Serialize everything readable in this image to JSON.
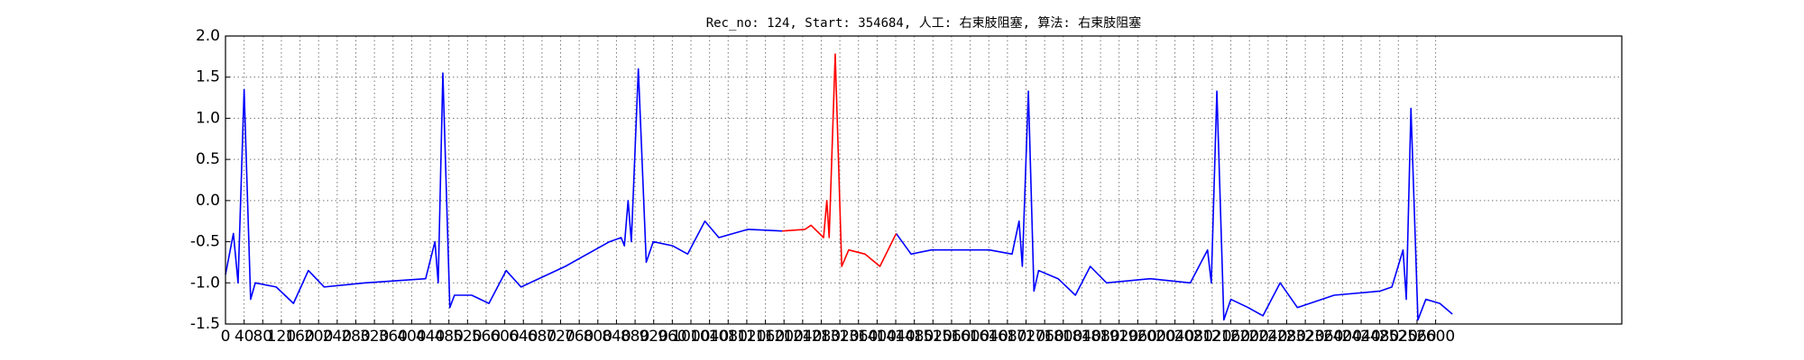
{
  "chart_data": {
    "type": "line",
    "title": "Rec_no: 124, Start: 354684, 人工: 右束肢阻塞, 算法: 右束肢阻塞",
    "x": [
      0,
      17,
      27,
      40,
      54,
      64,
      109,
      146,
      178,
      212,
      300,
      430,
      450,
      457,
      467,
      482,
      492,
      529,
      566,
      603,
      635,
      730,
      825,
      850,
      857,
      865,
      872,
      887,
      904,
      919,
      961,
      993,
      1030,
      1060,
      1122,
      1196,
      1245,
      1258,
      1285,
      1292,
      1297,
      1310,
      1324,
      1339,
      1374,
      1406,
      1441,
      1473,
      1517,
      1641,
      1690,
      1705,
      1712,
      1725,
      1737,
      1747,
      1789,
      1826,
      1858,
      1893,
      1987,
      2073,
      2110,
      2118,
      2130,
      2145,
      2160,
      2197,
      2229,
      2266,
      2303,
      2382,
      2481,
      2506,
      2530,
      2537,
      2547,
      2562,
      2579,
      2609,
      2636
    ],
    "series": [
      {
        "color": "#0000ff",
        "values": [
          -0.9,
          -0.4,
          -1.0,
          1.35,
          -1.2,
          -1.0,
          -1.05,
          -1.25,
          -0.85,
          -1.05,
          -1.0,
          -0.95,
          -0.5,
          -1.0,
          1.55,
          -1.3,
          -1.15,
          -1.15,
          -1.25,
          -0.85,
          -1.05,
          -0.8,
          -0.5,
          -0.45,
          -0.55,
          0.0,
          -0.5,
          1.6,
          -0.75,
          -0.5,
          -0.55,
          -0.65,
          -0.25,
          -0.45,
          -0.35,
          -0.37,
          null,
          null,
          null,
          null,
          null,
          null,
          null,
          null,
          null,
          null,
          -0.4,
          -0.65,
          -0.6,
          -0.6,
          -0.65,
          -0.25,
          -0.8,
          1.33,
          -1.1,
          -0.85,
          -0.95,
          -1.15,
          -0.8,
          -1.0,
          -0.95,
          -1.0,
          -0.6,
          -1.0,
          1.33,
          -1.45,
          -1.2,
          -1.3,
          -1.4,
          -1.0,
          -1.3,
          -1.15,
          -1.1,
          -1.05,
          -0.6,
          -1.2,
          1.12,
          -1.45,
          -1.2,
          -1.25,
          -1.38
        ]
      },
      {
        "color": "#ff0000",
        "values": [
          null,
          null,
          null,
          null,
          null,
          null,
          null,
          null,
          null,
          null,
          null,
          null,
          null,
          null,
          null,
          null,
          null,
          null,
          null,
          null,
          null,
          null,
          null,
          null,
          null,
          null,
          null,
          null,
          null,
          null,
          null,
          null,
          null,
          null,
          null,
          -0.37,
          -0.35,
          -0.3,
          -0.45,
          0.0,
          -0.45,
          1.78,
          -0.8,
          -0.6,
          -0.65,
          -0.8,
          -0.4,
          null,
          null,
          null,
          null,
          null,
          null,
          null,
          null,
          null,
          null,
          null,
          null,
          null,
          null,
          null,
          null,
          null,
          null,
          null,
          null,
          null,
          null,
          null,
          null,
          null,
          null,
          null,
          null,
          null,
          null,
          null,
          null,
          null,
          null
        ]
      }
    ],
    "xlim": [
      0,
      3000
    ],
    "xticks": [
      0,
      40,
      80,
      120,
      160,
      200,
      240,
      280,
      320,
      360,
      400,
      440,
      480,
      520,
      560,
      600,
      640,
      680,
      720,
      760,
      800,
      840,
      880,
      920,
      960,
      1000,
      1040,
      1080,
      1120,
      1160,
      1200,
      1240,
      1280,
      1320,
      1360,
      1400,
      1440,
      1480,
      1520,
      1560,
      1600,
      1640,
      1680,
      1720,
      1760,
      1800,
      1840,
      1880,
      1920,
      1960,
      2000,
      2040,
      2080,
      2120,
      2160,
      2200,
      2240,
      2280,
      2320,
      2360,
      2400,
      2440,
      2480,
      2520,
      2560,
      2600
    ],
    "ylim": [
      -1.5,
      2.0
    ],
    "yticks": [
      {
        "value": -1.5,
        "label": "-1.5"
      },
      {
        "value": -1.0,
        "label": "-1.0"
      },
      {
        "value": -0.5,
        "label": "-0.5"
      },
      {
        "value": 0.0,
        "label": "0.0"
      },
      {
        "value": 0.5,
        "label": "0.5"
      },
      {
        "value": 1.0,
        "label": "1.0"
      },
      {
        "value": 1.5,
        "label": "1.5"
      },
      {
        "value": 2.0,
        "label": "2.0"
      }
    ],
    "grid": true
  }
}
